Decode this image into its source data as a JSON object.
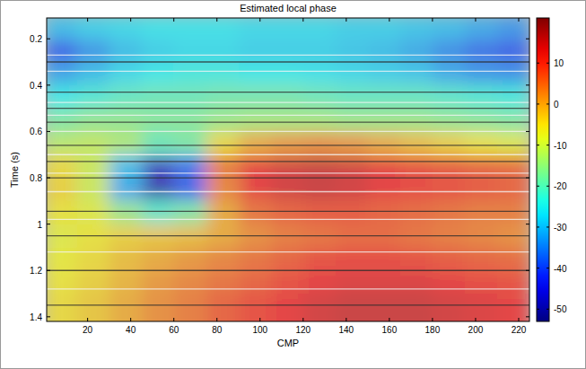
{
  "chart_data": {
    "type": "heatmap",
    "title": "Estimated local phase",
    "x_label": "CMP",
    "y_label": "Time (s)",
    "xlim": [
      1,
      225
    ],
    "ylim": [
      0.11,
      1.42
    ],
    "xticks": [
      20,
      40,
      60,
      80,
      100,
      120,
      140,
      160,
      180,
      200,
      220
    ],
    "yticks": [
      0.2,
      0.4,
      0.6,
      0.8,
      1,
      1.2,
      1.4
    ],
    "x_edges": [
      0,
      15,
      30,
      45,
      60,
      75,
      90,
      105,
      120,
      135,
      150,
      165,
      180,
      195,
      210,
      225
    ],
    "y_edges": [
      0.1,
      0.2,
      0.3,
      0.4,
      0.5,
      0.6,
      0.7,
      0.8,
      0.9,
      1.0,
      1.1,
      1.2,
      1.3,
      1.4,
      1.5
    ],
    "cells": [
      [
        -30,
        -28,
        -27,
        -26,
        -26,
        -26,
        -27,
        -27,
        -27,
        -28,
        -28,
        -29,
        -30,
        -32,
        -34
      ],
      [
        -40,
        -34,
        -30,
        -28,
        -27,
        -27,
        -28,
        -28,
        -28,
        -29,
        -30,
        -32,
        -35,
        -38,
        -40
      ],
      [
        -33,
        -30,
        -27,
        -25,
        -24,
        -24,
        -25,
        -25,
        -26,
        -27,
        -28,
        -29,
        -32,
        -34,
        -35
      ],
      [
        -25,
        -23,
        -21,
        -20,
        -20,
        -19,
        -19,
        -19,
        -20,
        -21,
        -21,
        -21,
        -22,
        -23,
        -24
      ],
      [
        -18,
        -16,
        -16,
        -17,
        -17,
        -15,
        -14,
        -14,
        -14,
        -15,
        -15,
        -15,
        -16,
        -17,
        -18
      ],
      [
        -12,
        -11,
        -13,
        -20,
        -18,
        -5,
        0,
        2,
        3,
        2,
        0,
        -2,
        -4,
        -6,
        -8
      ],
      [
        -5,
        -10,
        -30,
        -48,
        -38,
        5,
        12,
        14,
        15,
        14,
        12,
        10,
        9,
        8,
        7
      ],
      [
        -4,
        -10,
        -32,
        -50,
        -40,
        4,
        12,
        14,
        15,
        14,
        12,
        11,
        10,
        9,
        8
      ],
      [
        -6,
        -8,
        -15,
        -22,
        -18,
        0,
        6,
        8,
        9,
        9,
        8,
        7,
        6,
        5,
        5
      ],
      [
        -8,
        -6,
        -4,
        -3,
        -2,
        0,
        3,
        5,
        6,
        7,
        7,
        6,
        5,
        4,
        3
      ],
      [
        -7,
        -5,
        -2,
        0,
        2,
        4,
        6,
        8,
        10,
        11,
        11,
        10,
        9,
        8,
        7
      ],
      [
        -6,
        -4,
        -1,
        2,
        4,
        6,
        8,
        10,
        12,
        13,
        13,
        13,
        12,
        11,
        10
      ],
      [
        -5,
        -3,
        0,
        3,
        5,
        8,
        10,
        12,
        14,
        15,
        15,
        15,
        14,
        13,
        12
      ],
      [
        -5,
        -3,
        0,
        3,
        5,
        8,
        10,
        12,
        14,
        15,
        15,
        15,
        14,
        13,
        12
      ]
    ],
    "colorbar": {
      "range": [
        -53,
        21
      ],
      "ticks": [
        10,
        0,
        -10,
        -20,
        -30,
        -40,
        -50
      ]
    },
    "reflectors": [
      0.27,
      0.3,
      0.34,
      0.43,
      0.475,
      0.5,
      0.53,
      0.56,
      0.6,
      0.66,
      0.7,
      0.73,
      0.78,
      0.8,
      0.86,
      0.945,
      0.98,
      1.05,
      1.12,
      1.2,
      1.28,
      1.35
    ]
  }
}
